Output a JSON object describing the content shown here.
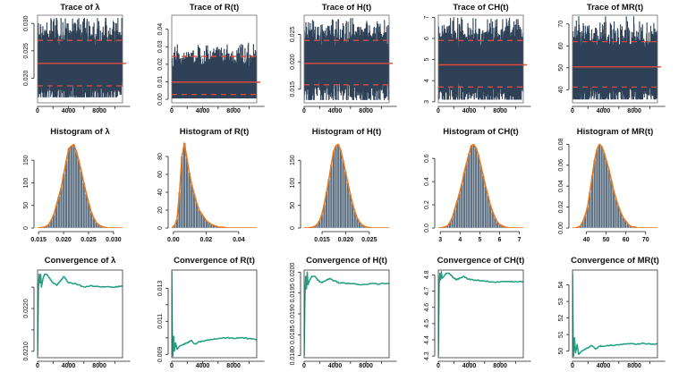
{
  "colors": {
    "trace": "#2e4157",
    "trace_mean": "#e2483c",
    "trace_ci": "#e2483c",
    "hist_bar": "#5f7183",
    "hist_bar_edge": "#e8eef2",
    "density": "#e8791c",
    "convergence": "#1f9e80",
    "axis": "#222222",
    "frame": "#6b6b6b"
  },
  "chart_data": [
    {
      "id": "trace-lambda",
      "type": "line",
      "title": "Trace of λ",
      "row": "trace",
      "x_ticks": [
        0,
        4000,
        8000
      ],
      "x_tick_labels": [
        "0",
        "4000",
        "8000"
      ],
      "xlim": [
        0,
        11000
      ],
      "ylim": [
        0.0155,
        0.0315
      ],
      "y_ticks": [
        0.02,
        0.025,
        0.03
      ],
      "y_tick_labels": [
        "0.020",
        "0.025",
        "0.030"
      ],
      "mean": 0.0227,
      "ci": [
        0.0186,
        0.0269
      ],
      "sample_min": 0.0165,
      "sample_max": 0.031,
      "n_iter": 11000
    },
    {
      "id": "trace-R",
      "type": "line",
      "title": "Trace of R(t)",
      "row": "trace",
      "x_ticks": [
        0,
        4000,
        8000
      ],
      "x_tick_labels": [
        "0",
        "4000",
        "8000"
      ],
      "xlim": [
        0,
        11000
      ],
      "ylim": [
        -0.002,
        0.048
      ],
      "y_ticks": [
        0.0,
        0.01,
        0.02,
        0.03,
        0.04
      ],
      "y_tick_labels": [
        "0.00",
        "0.01",
        "0.02",
        "0.03",
        "0.04"
      ],
      "mean": 0.0098,
      "ci": [
        0.0028,
        0.0245
      ],
      "sample_min": 0.0005,
      "sample_max": 0.047,
      "n_iter": 11000
    },
    {
      "id": "trace-H",
      "type": "line",
      "title": "Trace of H(t)",
      "row": "trace",
      "x_ticks": [
        0,
        4000,
        8000
      ],
      "x_tick_labels": [
        "0",
        "4000",
        "8000"
      ],
      "xlim": [
        0,
        11000
      ],
      "ylim": [
        0.0125,
        0.0285
      ],
      "y_ticks": [
        0.015,
        0.02,
        0.025
      ],
      "y_tick_labels": [
        "0.015",
        "0.020",
        "0.025"
      ],
      "mean": 0.0197,
      "ci": [
        0.0158,
        0.0239
      ],
      "sample_min": 0.013,
      "sample_max": 0.028,
      "n_iter": 11000
    },
    {
      "id": "trace-CH",
      "type": "line",
      "title": "Trace of CH(t)",
      "row": "trace",
      "x_ticks": [
        0,
        4000,
        8000
      ],
      "x_tick_labels": [
        "0",
        "4000",
        "8000"
      ],
      "xlim": [
        0,
        11000
      ],
      "ylim": [
        2.95,
        7.1
      ],
      "y_ticks": [
        3,
        4,
        5,
        6,
        7
      ],
      "y_tick_labels": [
        "3",
        "4",
        "5",
        "6",
        "7"
      ],
      "mean": 4.75,
      "ci": [
        3.7,
        5.9
      ],
      "sample_min": 3.1,
      "sample_max": 7.0,
      "n_iter": 11000
    },
    {
      "id": "trace-MR",
      "type": "line",
      "title": "Trace of MR(t)",
      "row": "trace",
      "x_ticks": [
        0,
        4000,
        8000
      ],
      "x_tick_labels": [
        "0",
        "4000",
        "8000"
      ],
      "xlim": [
        0,
        11000
      ],
      "ylim": [
        34,
        74
      ],
      "y_ticks": [
        40,
        50,
        60,
        70
      ],
      "y_tick_labels": [
        "40",
        "50",
        "60",
        "70"
      ],
      "mean": 50.4,
      "ci": [
        41.2,
        61.9
      ],
      "sample_min": 35.5,
      "sample_max": 73.5,
      "n_iter": 11000
    },
    {
      "id": "hist-lambda",
      "type": "bar",
      "title": "Histogram of λ",
      "row": "hist",
      "x_ticks": [
        0.015,
        0.02,
        0.025,
        0.03
      ],
      "x_tick_labels": [
        "0.015",
        "0.020",
        "0.025",
        "0.030"
      ],
      "xlim": [
        0.0148,
        0.0318
      ],
      "ylim": [
        0,
        190
      ],
      "y_ticks": [
        0,
        50,
        100,
        150
      ],
      "y_tick_labels": [
        "0",
        "50",
        "100",
        "150"
      ],
      "bins": {
        "start": 0.0148,
        "width": 0.0005,
        "values": [
          0,
          1,
          2,
          4,
          8,
          18,
          30,
          50,
          70,
          90,
          120,
          148,
          176,
          181,
          185,
          170,
          150,
          125,
          100,
          76,
          55,
          35,
          22,
          12,
          7,
          4,
          2,
          1,
          0,
          0,
          0,
          0,
          0,
          0
        ]
      },
      "density": {
        "mean": 0.0227,
        "sd": 0.0022
      }
    },
    {
      "id": "hist-R",
      "type": "bar",
      "title": "Histogram of R(t)",
      "row": "hist",
      "x_ticks": [
        0.0,
        0.02,
        0.04
      ],
      "x_tick_labels": [
        "0.00",
        "0.02",
        "0.04"
      ],
      "xlim": [
        -0.001,
        0.051
      ],
      "ylim": [
        0,
        96
      ],
      "y_ticks": [
        0,
        20,
        40,
        60,
        80
      ],
      "y_tick_labels": [
        "0",
        "20",
        "40",
        "60",
        "80"
      ],
      "bins": {
        "start": 0.0,
        "width": 0.0015,
        "values": [
          3,
          10,
          40,
          80,
          95,
          78,
          62,
          48,
          38,
          28,
          20,
          16,
          12,
          8,
          6,
          4,
          3,
          2,
          1,
          1,
          1,
          0,
          0,
          0,
          0,
          0,
          0,
          0,
          0,
          0,
          0,
          0,
          0,
          0
        ]
      },
      "density": {
        "shape": "right-skewed",
        "mode": 0.0065
      }
    },
    {
      "id": "hist-H",
      "type": "bar",
      "title": "Histogram of H(t)",
      "row": "hist",
      "x_ticks": [
        0.015,
        0.02,
        0.025
      ],
      "x_tick_labels": [
        "0.015",
        "0.020",
        "0.025"
      ],
      "xlim": [
        0.0112,
        0.0292
      ],
      "ylim": [
        0,
        190
      ],
      "y_ticks": [
        0,
        50,
        100,
        150
      ],
      "y_tick_labels": [
        "0",
        "50",
        "100",
        "150"
      ],
      "bins": {
        "start": 0.0112,
        "width": 0.0005,
        "values": [
          0,
          0,
          1,
          2,
          4,
          8,
          16,
          30,
          52,
          80,
          108,
          140,
          170,
          182,
          185,
          172,
          150,
          125,
          100,
          76,
          54,
          36,
          22,
          13,
          7,
          4,
          2,
          1,
          0,
          0,
          0,
          0,
          0,
          0,
          0,
          0
        ]
      },
      "density": {
        "mean": 0.0197,
        "sd": 0.0021
      }
    },
    {
      "id": "hist-CH",
      "type": "bar",
      "title": "Histogram of CH(t)",
      "row": "hist",
      "x_ticks": [
        3,
        4,
        5,
        6,
        7
      ],
      "x_tick_labels": [
        "3",
        "4",
        "5",
        "6",
        "7"
      ],
      "xlim": [
        2.9,
        7.2
      ],
      "ylim": [
        0,
        0.74
      ],
      "y_ticks": [
        0,
        0.2,
        0.4,
        0.6
      ],
      "y_tick_labels": [
        "0.0",
        "0.2",
        "0.4",
        "0.6"
      ],
      "bins": {
        "start": 2.95,
        "width": 0.12,
        "values": [
          0,
          0.005,
          0.01,
          0.02,
          0.05,
          0.09,
          0.16,
          0.23,
          0.3,
          0.38,
          0.48,
          0.56,
          0.64,
          0.71,
          0.72,
          0.69,
          0.63,
          0.54,
          0.45,
          0.36,
          0.28,
          0.2,
          0.14,
          0.09,
          0.05,
          0.03,
          0.02,
          0.01,
          0.005,
          0,
          0,
          0,
          0,
          0,
          0,
          0
        ]
      },
      "density": {
        "mean": 4.75,
        "sd": 0.57
      }
    },
    {
      "id": "hist-MR",
      "type": "bar",
      "title": "Histogram of MR(t)",
      "row": "hist",
      "x_ticks": [
        40,
        50,
        60,
        70
      ],
      "x_tick_labels": [
        "40",
        "50",
        "60",
        "70"
      ],
      "xlim": [
        33,
        76
      ],
      "ylim": [
        0,
        0.082
      ],
      "y_ticks": [
        0,
        0.02,
        0.04,
        0.06,
        0.08
      ],
      "y_tick_labels": [
        "0.00",
        "0.02",
        "0.04",
        "0.06",
        "0.08"
      ],
      "bins": {
        "start": 34,
        "width": 1.2,
        "values": [
          0,
          0.001,
          0.002,
          0.006,
          0.012,
          0.02,
          0.034,
          0.05,
          0.065,
          0.075,
          0.08,
          0.078,
          0.072,
          0.064,
          0.056,
          0.046,
          0.036,
          0.028,
          0.021,
          0.015,
          0.01,
          0.007,
          0.004,
          0.002,
          0.001,
          0.001,
          0,
          0,
          0,
          0,
          0,
          0,
          0,
          0,
          0
        ]
      },
      "density": {
        "shape": "slightly-right-skewed",
        "mode": 49
      }
    },
    {
      "id": "conv-lambda",
      "type": "line",
      "title": "Convergence of λ",
      "row": "conv",
      "x_ticks": [
        0,
        4000,
        8000
      ],
      "x_tick_labels": [
        "0",
        "4000",
        "8000"
      ],
      "xlim": [
        0,
        11000
      ],
      "ylim": [
        0.02085,
        0.0229
      ],
      "y_ticks": [
        0.021,
        0.0215,
        0.022,
        0.0225
      ],
      "y_tick_labels": [
        "0.0210",
        "",
        "0.0220",
        ""
      ],
      "points": [
        [
          0,
          0.0209
        ],
        [
          100,
          0.0224
        ],
        [
          200,
          0.0228
        ],
        [
          300,
          0.0226
        ],
        [
          400,
          0.0228
        ],
        [
          500,
          0.0225
        ],
        [
          700,
          0.0227
        ],
        [
          900,
          0.0228
        ],
        [
          1200,
          0.0228
        ],
        [
          1600,
          0.0227
        ],
        [
          2000,
          0.0226
        ],
        [
          2500,
          0.02255
        ],
        [
          3000,
          0.02265
        ],
        [
          3400,
          0.02275
        ],
        [
          4000,
          0.0226
        ],
        [
          5000,
          0.02258
        ],
        [
          6000,
          0.0225
        ],
        [
          7000,
          0.02253
        ],
        [
          8000,
          0.0225
        ],
        [
          9000,
          0.02252
        ],
        [
          10000,
          0.0225
        ],
        [
          11000,
          0.02253
        ]
      ]
    },
    {
      "id": "conv-R",
      "type": "line",
      "title": "Convergence of R(t)",
      "row": "conv",
      "x_ticks": [
        0,
        4000,
        8000
      ],
      "x_tick_labels": [
        "0",
        "4000",
        "8000"
      ],
      "xlim": [
        0,
        11000
      ],
      "ylim": [
        0.0088,
        0.0141
      ],
      "y_ticks": [
        0.009,
        0.01,
        0.011,
        0.012,
        0.013
      ],
      "y_tick_labels": [
        "0.009",
        "",
        "0.011",
        "",
        "0.013"
      ],
      "points": [
        [
          0,
          0.014
        ],
        [
          80,
          0.0095
        ],
        [
          150,
          0.0089
        ],
        [
          250,
          0.0101
        ],
        [
          350,
          0.0092
        ],
        [
          500,
          0.0097
        ],
        [
          700,
          0.0093
        ],
        [
          1000,
          0.0095
        ],
        [
          1500,
          0.0096
        ],
        [
          2000,
          0.0097
        ],
        [
          2500,
          0.00985
        ],
        [
          3000,
          0.0096
        ],
        [
          3500,
          0.00975
        ],
        [
          4000,
          0.0098
        ],
        [
          5000,
          0.0099
        ],
        [
          6000,
          0.00995
        ],
        [
          7000,
          0.01
        ],
        [
          8000,
          0.00998
        ],
        [
          9000,
          0.01
        ],
        [
          10000,
          0.00995
        ],
        [
          11000,
          0.0099
        ]
      ]
    },
    {
      "id": "conv-H",
      "type": "line",
      "title": "Convergence of H(t)",
      "row": "conv",
      "x_ticks": [
        0,
        4000,
        8000
      ],
      "x_tick_labels": [
        "0",
        "4000",
        "8000"
      ],
      "xlim": [
        0,
        11000
      ],
      "ylim": [
        0.01795,
        0.02005
      ],
      "y_ticks": [
        0.018,
        0.0185,
        0.019,
        0.0195,
        0.02
      ],
      "y_tick_labels": [
        "0.0180",
        "0.0185",
        "0.0190",
        "0.0195",
        "0.0200"
      ],
      "points": [
        [
          0,
          0.018
        ],
        [
          100,
          0.0194
        ],
        [
          200,
          0.0199
        ],
        [
          300,
          0.0196
        ],
        [
          400,
          0.02
        ],
        [
          500,
          0.0197
        ],
        [
          700,
          0.0198
        ],
        [
          1000,
          0.0199
        ],
        [
          1400,
          0.0199
        ],
        [
          1800,
          0.0198
        ],
        [
          2300,
          0.01975
        ],
        [
          2800,
          0.0198
        ],
        [
          3300,
          0.01985
        ],
        [
          3800,
          0.0198
        ],
        [
          4500,
          0.01975
        ],
        [
          5500,
          0.01973
        ],
        [
          6500,
          0.01972
        ],
        [
          7500,
          0.0197
        ],
        [
          8500,
          0.01972
        ],
        [
          9500,
          0.01972
        ],
        [
          11000,
          0.01973
        ]
      ]
    },
    {
      "id": "conv-CH",
      "type": "line",
      "title": "Convergence of CH(t)",
      "row": "conv",
      "x_ticks": [
        0,
        4000,
        8000
      ],
      "x_tick_labels": [
        "0",
        "4000",
        "8000"
      ],
      "xlim": [
        0,
        11000
      ],
      "ylim": [
        4.29,
        4.83
      ],
      "y_ticks": [
        4.3,
        4.4,
        4.5,
        4.6,
        4.7,
        4.8
      ],
      "y_tick_labels": [
        "4.3",
        "4.4",
        "4.5",
        "4.6",
        "4.7",
        "4.8"
      ],
      "points": [
        [
          0,
          4.3
        ],
        [
          100,
          4.74
        ],
        [
          200,
          4.81
        ],
        [
          300,
          4.77
        ],
        [
          400,
          4.82
        ],
        [
          500,
          4.78
        ],
        [
          700,
          4.79
        ],
        [
          1000,
          4.81
        ],
        [
          1400,
          4.81
        ],
        [
          1800,
          4.79
        ],
        [
          2300,
          4.77
        ],
        [
          2800,
          4.78
        ],
        [
          3300,
          4.79
        ],
        [
          3800,
          4.775
        ],
        [
          4500,
          4.77
        ],
        [
          5500,
          4.765
        ],
        [
          6500,
          4.76
        ],
        [
          7500,
          4.755
        ],
        [
          8500,
          4.76
        ],
        [
          9500,
          4.758
        ],
        [
          11000,
          4.76
        ]
      ]
    },
    {
      "id": "conv-MR",
      "type": "line",
      "title": "Convergence of MR(t)",
      "row": "conv",
      "x_ticks": [
        0,
        4000,
        8000
      ],
      "x_tick_labels": [
        "0",
        "4000",
        "8000"
      ],
      "xlim": [
        0,
        11000
      ],
      "ylim": [
        49.6,
        54.9
      ],
      "y_ticks": [
        50,
        51,
        52,
        53,
        54
      ],
      "y_tick_labels": [
        "50",
        "51",
        "52",
        "53",
        "54"
      ],
      "points": [
        [
          0,
          54.7
        ],
        [
          80,
          50.6
        ],
        [
          150,
          49.7
        ],
        [
          250,
          50.8
        ],
        [
          400,
          49.9
        ],
        [
          600,
          50.4
        ],
        [
          800,
          49.8
        ],
        [
          1200,
          50.0
        ],
        [
          1600,
          50.1
        ],
        [
          2000,
          50.2
        ],
        [
          2500,
          50.35
        ],
        [
          3000,
          50.1
        ],
        [
          3500,
          50.3
        ],
        [
          4000,
          50.3
        ],
        [
          5000,
          50.35
        ],
        [
          6000,
          50.4
        ],
        [
          7000,
          50.45
        ],
        [
          8000,
          50.42
        ],
        [
          9000,
          50.45
        ],
        [
          10000,
          50.43
        ],
        [
          11000,
          50.42
        ]
      ]
    }
  ]
}
